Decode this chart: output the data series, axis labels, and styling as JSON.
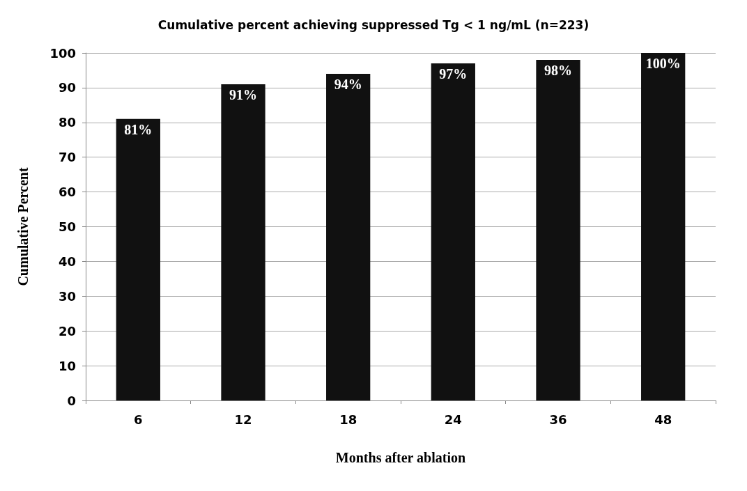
{
  "chart_data": {
    "type": "bar",
    "title": "Cumulative percent achieving suppressed Tg < 1 ng/mL (n=223)",
    "xlabel": "Months after ablation",
    "ylabel": "Cumulative Percent",
    "categories": [
      "6",
      "12",
      "18",
      "24",
      "36",
      "48"
    ],
    "values": [
      81,
      91,
      94,
      97,
      98,
      100
    ],
    "value_labels": [
      "81%",
      "91%",
      "94%",
      "97%",
      "98%",
      "100%"
    ],
    "color": "#111111",
    "ylim": [
      0,
      100
    ],
    "yticks": [
      0,
      10,
      20,
      30,
      40,
      50,
      60,
      70,
      80,
      90,
      100
    ],
    "grid": "y"
  }
}
